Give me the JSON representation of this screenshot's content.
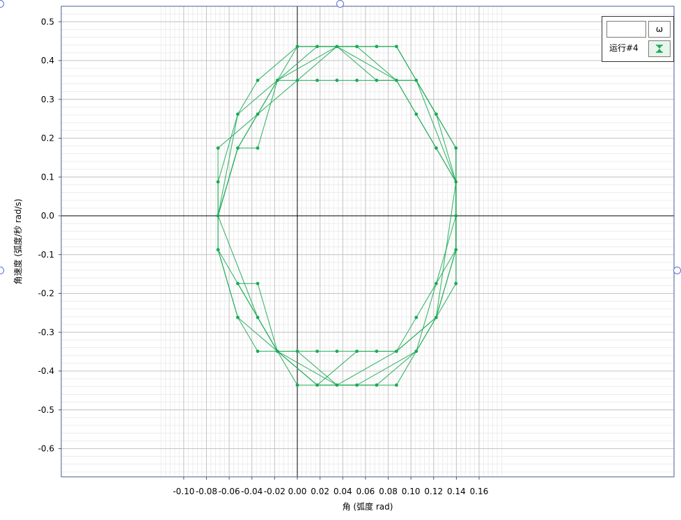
{
  "chart_data": {
    "type": "line",
    "xlabel": "角 (弧度 rad)",
    "ylabel": "角速度 (弧度/秒 rad/s)",
    "xlim": [
      -0.11,
      0.165
    ],
    "ylim": [
      -0.675,
      0.54
    ],
    "x_ticks": [
      -0.1,
      -0.08,
      -0.06,
      -0.04,
      -0.02,
      0.0,
      0.02,
      0.04,
      0.06,
      0.08,
      0.1,
      0.12,
      0.14,
      0.16
    ],
    "x_tick_labels": [
      "-0.10",
      "-0.08",
      "-0.06",
      "-0.04",
      "-0.02",
      "0.00",
      "0.02",
      "0.04",
      "0.06",
      "0.08",
      "0.10",
      "0.12",
      "0.14",
      "0.16"
    ],
    "y_ticks": [
      0.5,
      0.4,
      0.3,
      0.2,
      0.1,
      0.0,
      -0.1,
      -0.2,
      -0.3,
      -0.4,
      -0.5,
      -0.6
    ],
    "y_tick_labels": [
      "0.5",
      "0.4",
      "0.3",
      "0.2",
      "0.1",
      "0.0",
      "-0.1",
      "-0.2",
      "-0.3",
      "-0.4",
      "-0.5",
      "-0.6"
    ],
    "grid": true,
    "legend_position": "top-right",
    "series_color": "#1aaa55",
    "series": [
      {
        "name": "运行#4",
        "points": [
          [
            -0.0698,
            0.0
          ],
          [
            -0.0524,
            0.2618
          ],
          [
            -0.0175,
            0.349
          ],
          [
            0.0,
            0.4363
          ],
          [
            0.0175,
            0.4363
          ],
          [
            0.0349,
            0.4363
          ],
          [
            0.0524,
            0.4363
          ],
          [
            0.0698,
            0.4363
          ],
          [
            0.0873,
            0.4363
          ],
          [
            0.1047,
            0.349
          ],
          [
            0.1222,
            0.2618
          ],
          [
            0.1396,
            0.1745
          ],
          [
            0.1396,
            0.0873
          ],
          [
            0.1396,
            0.0
          ],
          [
            0.1396,
            -0.0873
          ],
          [
            0.1396,
            -0.1745
          ],
          [
            0.1222,
            -0.2618
          ],
          [
            0.1047,
            -0.349
          ],
          [
            0.0873,
            -0.4363
          ],
          [
            0.0698,
            -0.4363
          ],
          [
            0.0524,
            -0.4363
          ],
          [
            0.0349,
            -0.4363
          ],
          [
            0.0175,
            -0.4363
          ],
          [
            0.0,
            -0.4363
          ],
          [
            -0.0175,
            -0.349
          ],
          [
            -0.0349,
            -0.2618
          ],
          [
            -0.0524,
            -0.1745
          ],
          [
            -0.0698,
            -0.0873
          ],
          [
            -0.0698,
            0.0
          ],
          [
            -0.0524,
            0.1745
          ],
          [
            -0.0349,
            0.2618
          ],
          [
            -0.0175,
            0.349
          ],
          [
            0.0,
            0.349
          ],
          [
            0.0175,
            0.349
          ],
          [
            0.0349,
            0.349
          ],
          [
            0.0524,
            0.349
          ],
          [
            0.0698,
            0.349
          ],
          [
            0.0873,
            0.349
          ],
          [
            0.1047,
            0.2618
          ],
          [
            0.1222,
            0.1745
          ],
          [
            0.1396,
            0.0873
          ],
          [
            0.1396,
            0.0
          ],
          [
            0.1396,
            -0.0873
          ],
          [
            0.1222,
            -0.1745
          ],
          [
            0.1047,
            -0.2618
          ],
          [
            0.0873,
            -0.349
          ],
          [
            0.0698,
            -0.349
          ],
          [
            0.0524,
            -0.349
          ],
          [
            0.0349,
            -0.349
          ],
          [
            0.0175,
            -0.349
          ],
          [
            0.0,
            -0.349
          ],
          [
            -0.0175,
            -0.349
          ],
          [
            -0.0349,
            -0.349
          ],
          [
            -0.0524,
            -0.2618
          ],
          [
            -0.0698,
            -0.0873
          ],
          [
            -0.0698,
            0.0873
          ],
          [
            -0.0524,
            0.2618
          ],
          [
            -0.0349,
            0.349
          ],
          [
            0.0,
            0.4363
          ],
          [
            0.0349,
            0.4363
          ],
          [
            0.0873,
            0.349
          ],
          [
            0.1047,
            0.349
          ],
          [
            0.1222,
            0.2618
          ],
          [
            0.1396,
            0.0873
          ],
          [
            0.1396,
            -0.0873
          ],
          [
            0.1222,
            -0.2618
          ],
          [
            0.1047,
            -0.349
          ],
          [
            0.0698,
            -0.4363
          ],
          [
            0.0349,
            -0.4363
          ],
          [
            0.0,
            -0.349
          ],
          [
            -0.0175,
            -0.349
          ],
          [
            -0.0349,
            -0.2618
          ],
          [
            -0.0524,
            -0.1745
          ],
          [
            -0.0349,
            -0.1745
          ],
          [
            -0.0175,
            -0.349
          ],
          [
            0.0175,
            -0.4363
          ],
          [
            0.0524,
            -0.349
          ],
          [
            0.0873,
            -0.349
          ],
          [
            0.1222,
            -0.2618
          ],
          [
            0.1396,
            -0.0873
          ],
          [
            0.1396,
            0.0873
          ],
          [
            0.1222,
            0.1745
          ],
          [
            0.1047,
            0.2618
          ],
          [
            0.0873,
            0.349
          ],
          [
            0.0524,
            0.4363
          ],
          [
            0.0175,
            0.4363
          ],
          [
            -0.0175,
            0.349
          ],
          [
            -0.0349,
            0.1745
          ],
          [
            -0.0524,
            0.1745
          ],
          [
            -0.0698,
            0.0
          ],
          [
            -0.0524,
            0.1745
          ],
          [
            -0.0175,
            0.349
          ],
          [
            0.0349,
            0.4363
          ],
          [
            0.0698,
            0.349
          ],
          [
            0.1047,
            0.349
          ],
          [
            0.1396,
            0.1745
          ],
          [
            0.1396,
            0.0
          ],
          [
            0.1222,
            -0.1745
          ],
          [
            0.1047,
            -0.349
          ],
          [
            0.0524,
            -0.4363
          ],
          [
            0.0175,
            -0.4363
          ],
          [
            -0.0175,
            -0.349
          ],
          [
            -0.0349,
            -0.2618
          ],
          [
            -0.0698,
            0.0
          ],
          [
            -0.0698,
            0.1745
          ],
          [
            0.0,
            0.349
          ],
          [
            0.0349,
            0.4363
          ],
          [
            0.0873,
            0.4363
          ],
          [
            0.1047,
            0.349
          ],
          [
            0.1396,
            0.0873
          ],
          [
            0.1222,
            -0.2618
          ],
          [
            0.0873,
            -0.349
          ],
          [
            0.0349,
            -0.4363
          ],
          [
            -0.0175,
            -0.349
          ],
          [
            -0.0524,
            -0.2618
          ],
          [
            -0.0698,
            -0.0873
          ]
        ]
      }
    ]
  },
  "legend": {
    "field_value": "",
    "variable_label": "ω",
    "run_label": "运行#4",
    "swatch_icon": "hourglass-icon"
  }
}
